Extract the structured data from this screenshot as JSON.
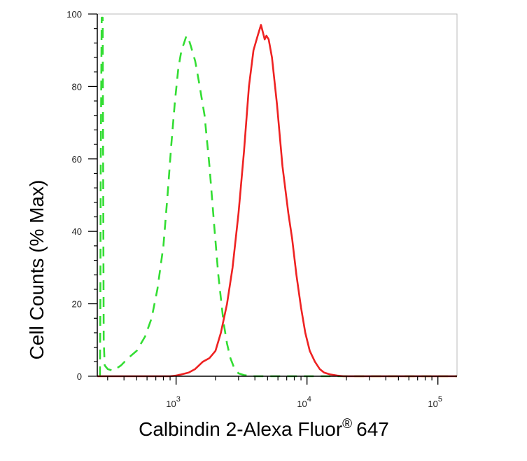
{
  "chart_data": {
    "type": "line",
    "xlabel": "Calbindin 2-Alexa Fluor",
    "xlabel_sup": "®",
    "xlabel_suffix": "647",
    "ylabel": "Cell Counts (% Max)",
    "x_scale": "log",
    "xlim": [
      250,
      140000
    ],
    "ylim": [
      0,
      100
    ],
    "y_ticks": [
      0,
      20,
      40,
      60,
      80,
      100
    ],
    "y_tick_labels": [
      "0",
      "20",
      "40",
      "60",
      "80",
      "100"
    ],
    "x_ticks": [
      1000,
      10000,
      100000
    ],
    "x_tick_labels": [
      {
        "base": "10",
        "exp": "3"
      },
      {
        "base": "10",
        "exp": "4"
      },
      {
        "base": "10",
        "exp": "5"
      }
    ],
    "grid": false,
    "legend": "none",
    "series": [
      {
        "color": "#33dd33",
        "style": "dashed",
        "points": [
          [
            262,
            0
          ],
          [
            264,
            20
          ],
          [
            266,
            60
          ],
          [
            270,
            99
          ],
          [
            275,
            99
          ],
          [
            280,
            10
          ],
          [
            285,
            3
          ],
          [
            300,
            2
          ],
          [
            330,
            1.5
          ],
          [
            380,
            3
          ],
          [
            430,
            5
          ],
          [
            500,
            7
          ],
          [
            580,
            11
          ],
          [
            650,
            16
          ],
          [
            720,
            24
          ],
          [
            800,
            36
          ],
          [
            860,
            50
          ],
          [
            920,
            64
          ],
          [
            980,
            76
          ],
          [
            1040,
            85
          ],
          [
            1100,
            90
          ],
          [
            1150,
            92
          ],
          [
            1200,
            94
          ],
          [
            1250,
            93
          ],
          [
            1300,
            91
          ],
          [
            1400,
            87
          ],
          [
            1500,
            81
          ],
          [
            1650,
            72
          ],
          [
            1800,
            58
          ],
          [
            1950,
            42
          ],
          [
            2100,
            28
          ],
          [
            2300,
            15
          ],
          [
            2450,
            9
          ],
          [
            2600,
            5
          ],
          [
            2800,
            2
          ],
          [
            3000,
            0.8
          ],
          [
            3300,
            0.3
          ],
          [
            3800,
            0
          ],
          [
            10000,
            0
          ],
          [
            100000,
            0
          ],
          [
            140000,
            0
          ]
        ]
      },
      {
        "color": "#ee2222",
        "style": "solid",
        "points": [
          [
            250,
            0
          ],
          [
            900,
            0
          ],
          [
            1000,
            0.2
          ],
          [
            1100,
            0.5
          ],
          [
            1250,
            1
          ],
          [
            1400,
            2
          ],
          [
            1600,
            4
          ],
          [
            1800,
            5
          ],
          [
            2000,
            7
          ],
          [
            2200,
            12
          ],
          [
            2450,
            20
          ],
          [
            2700,
            30
          ],
          [
            3000,
            45
          ],
          [
            3300,
            62
          ],
          [
            3600,
            80
          ],
          [
            3900,
            90
          ],
          [
            4200,
            94
          ],
          [
            4450,
            97
          ],
          [
            4600,
            95
          ],
          [
            4750,
            93
          ],
          [
            4900,
            94
          ],
          [
            5100,
            93
          ],
          [
            5400,
            88
          ],
          [
            5900,
            75
          ],
          [
            6500,
            58
          ],
          [
            7200,
            45
          ],
          [
            7700,
            38
          ],
          [
            8300,
            28
          ],
          [
            9000,
            19
          ],
          [
            9700,
            12
          ],
          [
            10500,
            7
          ],
          [
            11500,
            4
          ],
          [
            12500,
            2
          ],
          [
            13500,
            1
          ],
          [
            15000,
            0.5
          ],
          [
            17000,
            0.2
          ],
          [
            19000,
            0
          ],
          [
            140000,
            0
          ]
        ]
      }
    ]
  }
}
